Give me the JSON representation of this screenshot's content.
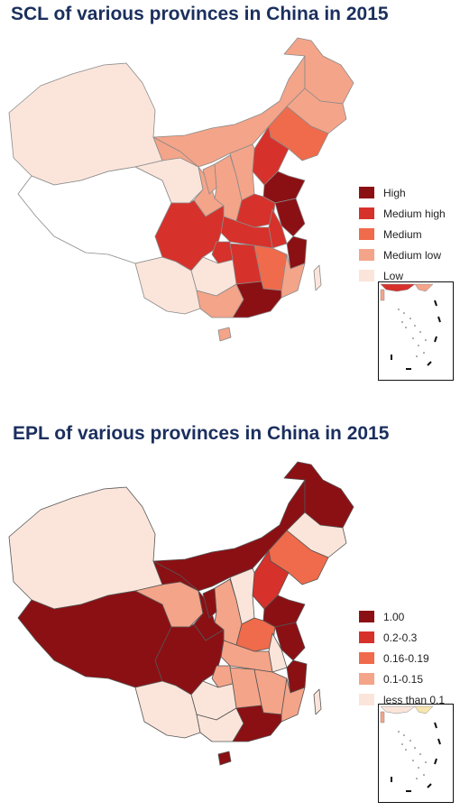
{
  "maps": [
    {
      "title": "SCL of various provinces in China in 2015",
      "legend": [
        {
          "label": "High",
          "color": "#8b1014"
        },
        {
          "label": "Medium high",
          "color": "#d7312b"
        },
        {
          "label": "Medium",
          "color": "#ef6b4b"
        },
        {
          "label": "Medium low",
          "color": "#f4a489"
        },
        {
          "label": "Low",
          "color": "#fbe5da"
        }
      ],
      "regions": [
        {
          "name": "Xinjiang",
          "class": 4
        },
        {
          "name": "Tibet",
          "class": null
        },
        {
          "name": "Qinghai",
          "class": 4
        },
        {
          "name": "Gansu",
          "class": 3
        },
        {
          "name": "Inner Mongolia",
          "class": 3
        },
        {
          "name": "Heilongjiang",
          "class": 3
        },
        {
          "name": "Jilin",
          "class": 3
        },
        {
          "name": "Liaoning",
          "class": 2
        },
        {
          "name": "Hebei",
          "class": 1
        },
        {
          "name": "Shanxi",
          "class": 3
        },
        {
          "name": "Shaanxi",
          "class": 3
        },
        {
          "name": "Ningxia",
          "class": 3
        },
        {
          "name": "Shandong",
          "class": 0
        },
        {
          "name": "Henan",
          "class": 1
        },
        {
          "name": "Jiangsu",
          "class": 0
        },
        {
          "name": "Anhui",
          "class": 1
        },
        {
          "name": "Zhejiang",
          "class": 0
        },
        {
          "name": "Hubei",
          "class": 1
        },
        {
          "name": "Sichuan",
          "class": 1
        },
        {
          "name": "Chongqing",
          "class": 1
        },
        {
          "name": "Hunan",
          "class": 1
        },
        {
          "name": "Jiangxi",
          "class": 2
        },
        {
          "name": "Fujian",
          "class": 3
        },
        {
          "name": "Guizhou",
          "class": 4
        },
        {
          "name": "Yunnan",
          "class": 4
        },
        {
          "name": "Guangxi",
          "class": 3
        },
        {
          "name": "Guangdong",
          "class": 0
        },
        {
          "name": "Hainan",
          "class": 3
        },
        {
          "name": "Taiwan",
          "class": 4
        }
      ]
    },
    {
      "title": "EPL of various provinces in China in 2015",
      "legend": [
        {
          "label": "1.00",
          "color": "#8b1014"
        },
        {
          "label": "0.2-0.3",
          "color": "#d7312b"
        },
        {
          "label": "0.16-0.19",
          "color": "#ef6b4b"
        },
        {
          "label": "0.1-0.15",
          "color": "#f4a489"
        },
        {
          "label": "less than 0.1",
          "color": "#fbe5da"
        }
      ],
      "regions": [
        {
          "name": "Xinjiang",
          "class": 4
        },
        {
          "name": "Tibet",
          "class": 0
        },
        {
          "name": "Qinghai",
          "class": 3
        },
        {
          "name": "Gansu",
          "class": 0
        },
        {
          "name": "Inner Mongolia",
          "class": 0
        },
        {
          "name": "Heilongjiang",
          "class": 0
        },
        {
          "name": "Jilin",
          "class": 4
        },
        {
          "name": "Liaoning",
          "class": 2
        },
        {
          "name": "Hebei",
          "class": 1
        },
        {
          "name": "Shanxi",
          "class": 4
        },
        {
          "name": "Shaanxi",
          "class": 3
        },
        {
          "name": "Ningxia",
          "class": 0
        },
        {
          "name": "Shandong",
          "class": 0
        },
        {
          "name": "Henan",
          "class": 2
        },
        {
          "name": "Jiangsu",
          "class": 0
        },
        {
          "name": "Anhui",
          "class": 4
        },
        {
          "name": "Zhejiang",
          "class": 0
        },
        {
          "name": "Hubei",
          "class": 3
        },
        {
          "name": "Sichuan",
          "class": 0
        },
        {
          "name": "Chongqing",
          "class": 3
        },
        {
          "name": "Hunan",
          "class": 3
        },
        {
          "name": "Jiangxi",
          "class": 3
        },
        {
          "name": "Fujian",
          "class": 3
        },
        {
          "name": "Guizhou",
          "class": 4
        },
        {
          "name": "Yunnan",
          "class": 4
        },
        {
          "name": "Guangxi",
          "class": 4
        },
        {
          "name": "Guangdong",
          "class": 0
        },
        {
          "name": "Hainan",
          "class": 0
        },
        {
          "name": "Taiwan",
          "class": 4
        }
      ]
    }
  ]
}
